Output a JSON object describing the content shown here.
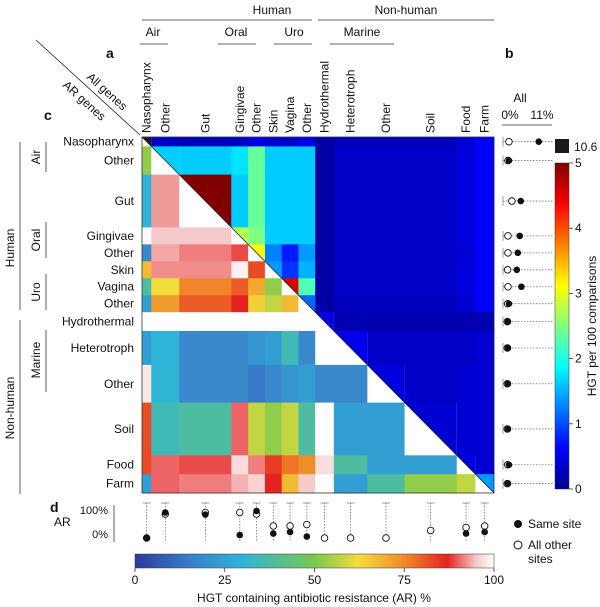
{
  "chart_data": [
    {
      "type": "heatmap",
      "panel_a_label": "a",
      "panel_c_label": "c",
      "corner_upper": "All genes",
      "corner_lower": "AR genes",
      "columns": [
        "Nasopharynx",
        "Other",
        "Gut",
        "Gingivae",
        "Other",
        "Skin",
        "Vagina",
        "Other",
        "Hydrothermal",
        "Heterotroph",
        "Other",
        "Soil",
        "Food",
        "Farm"
      ],
      "rows": [
        "Nasopharynx",
        "Other",
        "Gut",
        "Gingivae",
        "Other",
        "Skin",
        "Vagina",
        "Other",
        "Hydrothermal",
        "Heterotroph",
        "Other",
        "Soil",
        "Food",
        "Farm"
      ],
      "weights": [
        0.5,
        1.5,
        2.8,
        0.9,
        0.9,
        0.9,
        0.9,
        0.9,
        1,
        1.8,
        2.0,
        2.8,
        1,
        1
      ],
      "top_groups": [
        "Human",
        "Non-human"
      ],
      "top_subgroups": [
        "Air",
        "Oral",
        "Uro",
        "Marine"
      ],
      "side_groups": [
        "Human",
        "Non-human"
      ],
      "side_subgroups": [
        "Air",
        "Oral",
        "Uro",
        "Marine"
      ],
      "upper_triangle_all_genes_hgt_per_100": [
        [
          8.0,
          0.5,
          0.4,
          0.5,
          0.8,
          0.6,
          0.5,
          0.8,
          0.2,
          0.4,
          0.4,
          0.4,
          0.6,
          1.0
        ],
        [
          null,
          1.8,
          1.8,
          1.9,
          2.4,
          1.8,
          1.8,
          1.8,
          0.2,
          0.5,
          0.5,
          0.5,
          0.7,
          1.0
        ],
        [
          null,
          null,
          5.0,
          1.8,
          2.4,
          1.8,
          1.8,
          1.8,
          0.2,
          0.5,
          0.5,
          0.5,
          0.7,
          1.0
        ],
        [
          null,
          null,
          null,
          2.7,
          2.5,
          1.8,
          1.8,
          1.8,
          0.2,
          0.5,
          0.5,
          0.5,
          0.7,
          1.0
        ],
        [
          null,
          null,
          null,
          null,
          3.0,
          1.5,
          1.1,
          1.6,
          0.2,
          0.5,
          0.5,
          0.5,
          0.6,
          1.0
        ],
        [
          null,
          null,
          null,
          null,
          null,
          1.6,
          1.2,
          1.7,
          0.2,
          0.5,
          0.5,
          0.5,
          0.7,
          1.0
        ],
        [
          null,
          null,
          null,
          null,
          null,
          null,
          4.3,
          2.3,
          0.2,
          0.5,
          0.5,
          0.5,
          0.7,
          1.0
        ],
        [
          null,
          null,
          null,
          null,
          null,
          null,
          null,
          1.4,
          0.2,
          0.4,
          0.4,
          0.4,
          0.6,
          1.0
        ],
        [
          null,
          null,
          null,
          null,
          null,
          null,
          null,
          null,
          0.8,
          0.3,
          0.3,
          0.3,
          0.3,
          0.3
        ],
        [
          null,
          null,
          null,
          null,
          null,
          null,
          null,
          null,
          null,
          0.8,
          0.5,
          0.5,
          0.5,
          0.6
        ],
        [
          null,
          null,
          null,
          null,
          null,
          null,
          null,
          null,
          null,
          null,
          0.7,
          0.5,
          0.6,
          0.6
        ],
        [
          null,
          null,
          null,
          null,
          null,
          null,
          null,
          null,
          null,
          null,
          null,
          0.6,
          0.6,
          0.6
        ],
        [
          null,
          null,
          null,
          null,
          null,
          null,
          null,
          null,
          null,
          null,
          null,
          null,
          0.7,
          0.6
        ],
        [
          null,
          null,
          null,
          null,
          null,
          null,
          null,
          null,
          null,
          null,
          null,
          null,
          null,
          1.6
        ]
      ],
      "lower_triangle_ar_percent": [
        [
          null,
          null,
          null,
          null,
          null,
          null,
          null,
          null,
          null,
          null,
          null,
          null,
          null,
          null
        ],
        [
          40,
          null,
          null,
          null,
          null,
          null,
          null,
          null,
          null,
          null,
          null,
          null,
          null,
          null
        ],
        [
          25,
          84,
          null,
          null,
          null,
          null,
          null,
          null,
          null,
          null,
          null,
          null,
          null,
          null
        ],
        [
          null,
          88,
          88,
          null,
          null,
          null,
          null,
          null,
          null,
          null,
          null,
          null,
          null,
          null
        ],
        [
          15,
          85,
          82,
          78,
          null,
          null,
          null,
          null,
          null,
          null,
          null,
          null,
          null,
          null
        ],
        [
          55,
          83,
          83,
          97,
          70,
          null,
          null,
          null,
          null,
          null,
          null,
          null,
          null,
          null
        ],
        [
          30,
          50,
          63,
          68,
          58,
          40,
          null,
          null,
          null,
          null,
          null,
          null,
          null,
          null
        ],
        [
          20,
          60,
          68,
          75,
          52,
          45,
          55,
          null,
          null,
          null,
          null,
          null,
          null,
          null
        ],
        [
          null,
          null,
          null,
          null,
          null,
          null,
          null,
          null,
          null,
          null,
          null,
          null,
          null,
          null
        ],
        [
          20,
          25,
          15,
          15,
          18,
          20,
          28,
          15,
          null,
          null,
          null,
          null,
          null,
          null
        ],
        [
          95,
          25,
          15,
          15,
          12,
          15,
          18,
          20,
          15,
          15,
          null,
          null,
          null,
          null
        ],
        [
          70,
          28,
          30,
          80,
          45,
          40,
          45,
          30,
          null,
          20,
          20,
          null,
          null,
          null
        ],
        [
          70,
          80,
          78,
          92,
          82,
          72,
          65,
          62,
          92,
          30,
          20,
          20,
          null,
          null
        ],
        [
          20,
          80,
          82,
          86,
          90,
          75,
          55,
          88,
          null,
          20,
          30,
          40,
          45,
          null
        ]
      ]
    },
    {
      "type": "scatter",
      "panel_label": "b",
      "title": "All",
      "x_tick_labels": [
        "0%",
        "11%"
      ],
      "rows": [
        "Nasopharynx",
        "Other",
        "Gut",
        "Gingivae",
        "Other",
        "Skin",
        "Vagina",
        "Other",
        "Hydrothermal",
        "Heterotroph",
        "Other",
        "Soil",
        "Food",
        "Farm"
      ],
      "same_site_percent": [
        10.0,
        0.9,
        4.5,
        4.2,
        3.6,
        3.3,
        4.7,
        0.9,
        0.6,
        0.6,
        0.6,
        0.6,
        0.9,
        0.6
      ],
      "all_other_sites_percent": [
        0.9,
        0.6,
        1.8,
        0.6,
        0.6,
        0.5,
        0.6,
        0.5,
        0.4,
        0.4,
        0.4,
        0.4,
        0.5,
        0.4
      ]
    },
    {
      "type": "scatter",
      "panel_label": "d",
      "ylabel": "AR",
      "y_tick_labels": [
        "100%",
        "0%"
      ],
      "columns": [
        "Nasopharynx",
        "Other",
        "Gut",
        "Gingivae",
        "Other",
        "Skin",
        "Vagina",
        "Other",
        "Hydrothermal",
        "Heterotroph",
        "Other",
        "Soil",
        "Food",
        "Farm"
      ],
      "same_site_percent": [
        0,
        85,
        78,
        10,
        90,
        15,
        20,
        5,
        null,
        null,
        null,
        null,
        15,
        20
      ],
      "all_other_sites_percent": [
        0,
        80,
        85,
        85,
        80,
        40,
        40,
        45,
        0,
        0,
        0,
        25,
        35,
        40
      ]
    },
    {
      "type": "colorbar",
      "label": "HGT per 100 comparisons",
      "ticks": [
        "0",
        "1",
        "2",
        "3",
        "4",
        "5"
      ],
      "top_label": "10.6",
      "top_color": "#1a1a1a"
    },
    {
      "type": "colorbar",
      "label": "HGT containing antibiotic resistance (AR) %",
      "ticks": [
        "0",
        "25",
        "50",
        "75",
        "100"
      ]
    }
  ],
  "legend": {
    "same_site": "Same site",
    "all_other_sites_line1": "All other",
    "all_other_sites_line2": "sites"
  },
  "colors": {
    "jet_stops": [
      "#00008f",
      "#0000ff",
      "#00ffff",
      "#ffff00",
      "#ff0000",
      "#800000"
    ],
    "ar_stops": [
      "#2a3a9a",
      "#3a7dc8",
      "#2fb4d8",
      "#7ac74f",
      "#f2de3a",
      "#f08a2a",
      "#e52222",
      "#f6c8c8",
      "#ffffff"
    ]
  }
}
